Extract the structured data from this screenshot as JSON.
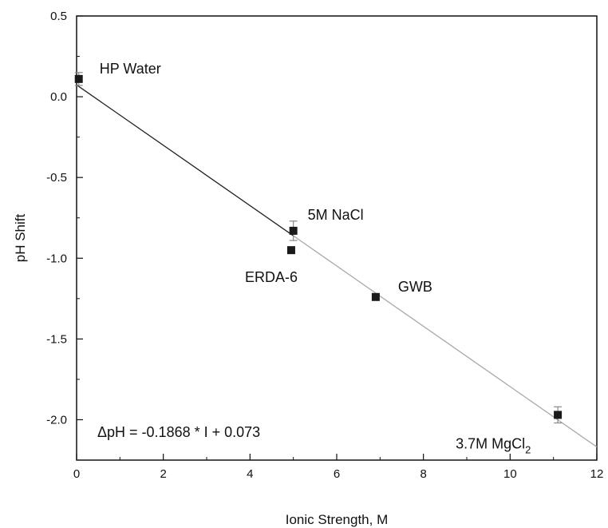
{
  "chart_data": {
    "type": "scatter",
    "title": "",
    "xlabel": "Ionic Strength, M",
    "ylabel": "pH Shift",
    "xlim": [
      0,
      12
    ],
    "ylim": [
      -2.25,
      0.5
    ],
    "x_ticks": [
      0,
      2,
      4,
      6,
      8,
      10,
      12
    ],
    "y_ticks": [
      0.5,
      0.0,
      -0.5,
      -1.0,
      -1.5,
      -2.0
    ],
    "x_tick_labels": [
      "0",
      "2",
      "4",
      "6",
      "8",
      "10",
      "12"
    ],
    "y_tick_labels": [
      "0.5",
      "0.0",
      "-0.5",
      "-1.0",
      "-1.5",
      "-2.0"
    ],
    "grid": false,
    "points": [
      {
        "label": "HP Water",
        "x": 0.05,
        "y": 0.11,
        "err": 0.04
      },
      {
        "label": "5M NaCl",
        "x": 5.0,
        "y": -0.83,
        "err": 0.06
      },
      {
        "label": "ERDA-6",
        "x": 4.95,
        "y": -0.95,
        "err": 0.0
      },
      {
        "label": "GWB",
        "x": 6.9,
        "y": -1.24,
        "err": 0.0
      },
      {
        "label": "3.7M MgCl",
        "label_sub": "2",
        "x": 11.1,
        "y": -1.97,
        "err": 0.05
      }
    ],
    "fit": {
      "slope": -0.1868,
      "intercept": 0.073,
      "equation": "ΔpH = -0.1868 * I + 0.073"
    }
  },
  "colors": {
    "marker": "#1a1a1a",
    "fit_dark": "#222222",
    "fit_light": "#aaaaaa",
    "errorbar": "#888888"
  }
}
